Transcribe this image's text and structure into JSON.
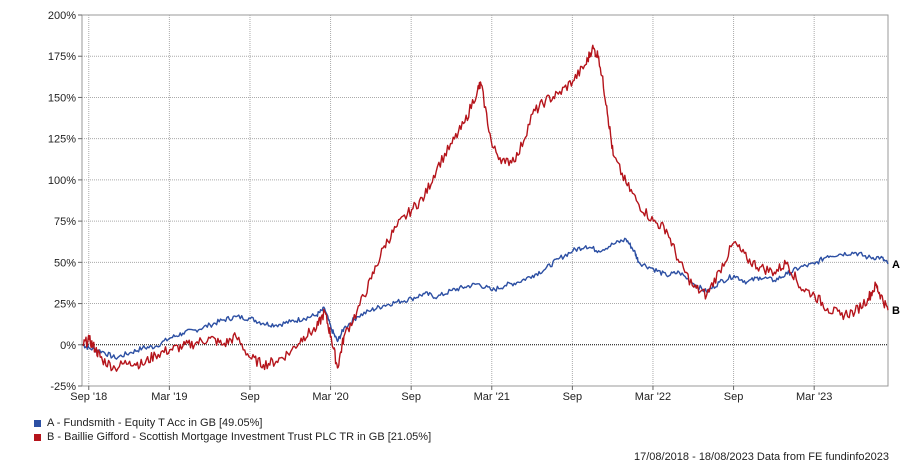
{
  "chart_data": {
    "type": "line",
    "title": "",
    "xlabel": "",
    "ylabel": "",
    "ylim": [
      -25,
      200
    ],
    "grid": true,
    "yticks": [
      -25,
      0,
      25,
      50,
      75,
      100,
      125,
      150,
      175,
      200
    ],
    "ytick_labels": [
      "-25%",
      "0%",
      "25%",
      "50%",
      "75%",
      "100%",
      "125%",
      "150%",
      "175%",
      "200%"
    ],
    "xlim": [
      2018.625,
      2023.625
    ],
    "xticks": [
      {
        "label": "Sep '18",
        "x": 2018.667
      },
      {
        "label": "Mar '19",
        "x": 2019.167
      },
      {
        "label": "Sep",
        "x": 2019.667
      },
      {
        "label": "Mar '20",
        "x": 2020.167
      },
      {
        "label": "Sep",
        "x": 2020.667
      },
      {
        "label": "Mar '21",
        "x": 2021.167
      },
      {
        "label": "Sep",
        "x": 2021.667
      },
      {
        "label": "Mar '22",
        "x": 2022.167
      },
      {
        "label": "Sep",
        "x": 2022.667
      },
      {
        "label": "Mar '23",
        "x": 2023.167
      }
    ],
    "legend_placement": "bottom-left",
    "series": [
      {
        "name": "A - Fundsmith - Equity T Acc in GB [49.05%]",
        "end_label": "A",
        "color": "#2c4fa3",
        "points": [
          [
            2018.63,
            0
          ],
          [
            2018.67,
            -2
          ],
          [
            2018.75,
            -4
          ],
          [
            2018.83,
            -8
          ],
          [
            2018.92,
            -5
          ],
          [
            2019.0,
            -2
          ],
          [
            2019.08,
            -1
          ],
          [
            2019.17,
            4
          ],
          [
            2019.25,
            7
          ],
          [
            2019.33,
            9
          ],
          [
            2019.42,
            12
          ],
          [
            2019.5,
            15
          ],
          [
            2019.58,
            17
          ],
          [
            2019.67,
            16
          ],
          [
            2019.75,
            13
          ],
          [
            2019.83,
            12
          ],
          [
            2019.92,
            14
          ],
          [
            2020.0,
            16
          ],
          [
            2020.08,
            18
          ],
          [
            2020.13,
            22
          ],
          [
            2020.17,
            10
          ],
          [
            2020.21,
            2
          ],
          [
            2020.25,
            10
          ],
          [
            2020.33,
            17
          ],
          [
            2020.42,
            21
          ],
          [
            2020.5,
            24
          ],
          [
            2020.58,
            26
          ],
          [
            2020.67,
            28
          ],
          [
            2020.75,
            31
          ],
          [
            2020.83,
            29
          ],
          [
            2020.92,
            33
          ],
          [
            2021.0,
            35
          ],
          [
            2021.08,
            37
          ],
          [
            2021.17,
            33
          ],
          [
            2021.25,
            36
          ],
          [
            2021.33,
            38
          ],
          [
            2021.42,
            42
          ],
          [
            2021.5,
            46
          ],
          [
            2021.58,
            52
          ],
          [
            2021.67,
            57
          ],
          [
            2021.75,
            60
          ],
          [
            2021.83,
            57
          ],
          [
            2021.92,
            61
          ],
          [
            2022.0,
            64
          ],
          [
            2022.05,
            57
          ],
          [
            2022.08,
            50
          ],
          [
            2022.17,
            46
          ],
          [
            2022.25,
            42
          ],
          [
            2022.33,
            44
          ],
          [
            2022.42,
            37
          ],
          [
            2022.5,
            32
          ],
          [
            2022.58,
            38
          ],
          [
            2022.67,
            42
          ],
          [
            2022.75,
            38
          ],
          [
            2022.83,
            41
          ],
          [
            2022.92,
            39
          ],
          [
            2023.0,
            43
          ],
          [
            2023.08,
            47
          ],
          [
            2023.17,
            49
          ],
          [
            2023.25,
            54
          ],
          [
            2023.33,
            55
          ],
          [
            2023.42,
            56
          ],
          [
            2023.5,
            53
          ],
          [
            2023.58,
            53
          ],
          [
            2023.625,
            49
          ]
        ]
      },
      {
        "name": "B - Baillie Gifford - Scottish Mortgage Investment Trust PLC TR in GB [21.05%]",
        "end_label": "B",
        "color": "#b5141b",
        "points": [
          [
            2018.63,
            0
          ],
          [
            2018.67,
            3
          ],
          [
            2018.71,
            -3
          ],
          [
            2018.75,
            -9
          ],
          [
            2018.83,
            -14
          ],
          [
            2018.92,
            -10
          ],
          [
            2019.0,
            -12
          ],
          [
            2019.08,
            -6
          ],
          [
            2019.17,
            -3
          ],
          [
            2019.25,
            -1
          ],
          [
            2019.33,
            1
          ],
          [
            2019.42,
            4
          ],
          [
            2019.5,
            0
          ],
          [
            2019.58,
            5
          ],
          [
            2019.67,
            -8
          ],
          [
            2019.75,
            -12
          ],
          [
            2019.83,
            -10
          ],
          [
            2019.92,
            -4
          ],
          [
            2020.0,
            5
          ],
          [
            2020.08,
            10
          ],
          [
            2020.13,
            20
          ],
          [
            2020.17,
            5
          ],
          [
            2020.21,
            -14
          ],
          [
            2020.25,
            5
          ],
          [
            2020.33,
            20
          ],
          [
            2020.42,
            40
          ],
          [
            2020.5,
            60
          ],
          [
            2020.58,
            72
          ],
          [
            2020.67,
            82
          ],
          [
            2020.75,
            90
          ],
          [
            2020.83,
            108
          ],
          [
            2020.92,
            122
          ],
          [
            2021.0,
            135
          ],
          [
            2021.08,
            155
          ],
          [
            2021.1,
            158
          ],
          [
            2021.17,
            120
          ],
          [
            2021.25,
            110
          ],
          [
            2021.33,
            115
          ],
          [
            2021.42,
            140
          ],
          [
            2021.5,
            148
          ],
          [
            2021.58,
            152
          ],
          [
            2021.67,
            160
          ],
          [
            2021.75,
            170
          ],
          [
            2021.79,
            180
          ],
          [
            2021.83,
            175
          ],
          [
            2021.88,
            145
          ],
          [
            2021.92,
            115
          ],
          [
            2022.0,
            98
          ],
          [
            2022.08,
            85
          ],
          [
            2022.17,
            75
          ],
          [
            2022.25,
            70
          ],
          [
            2022.33,
            50
          ],
          [
            2022.42,
            35
          ],
          [
            2022.5,
            30
          ],
          [
            2022.58,
            45
          ],
          [
            2022.67,
            62
          ],
          [
            2022.75,
            52
          ],
          [
            2022.83,
            47
          ],
          [
            2022.92,
            44
          ],
          [
            2023.0,
            50
          ],
          [
            2023.08,
            35
          ],
          [
            2023.17,
            30
          ],
          [
            2023.25,
            22
          ],
          [
            2023.33,
            18
          ],
          [
            2023.42,
            20
          ],
          [
            2023.5,
            28
          ],
          [
            2023.55,
            36
          ],
          [
            2023.58,
            30
          ],
          [
            2023.625,
            21
          ]
        ]
      }
    ]
  },
  "legend": [
    {
      "text": "A - Fundsmith - Equity T Acc in GB [49.05%]",
      "color": "#2c4fa3"
    },
    {
      "text": "B - Baillie Gifford - Scottish Mortgage Investment Trust PLC TR in GB [21.05%]",
      "color": "#b5141b"
    }
  ],
  "footer": "17/08/2018 - 18/08/2023 Data from FE fundinfo2023"
}
